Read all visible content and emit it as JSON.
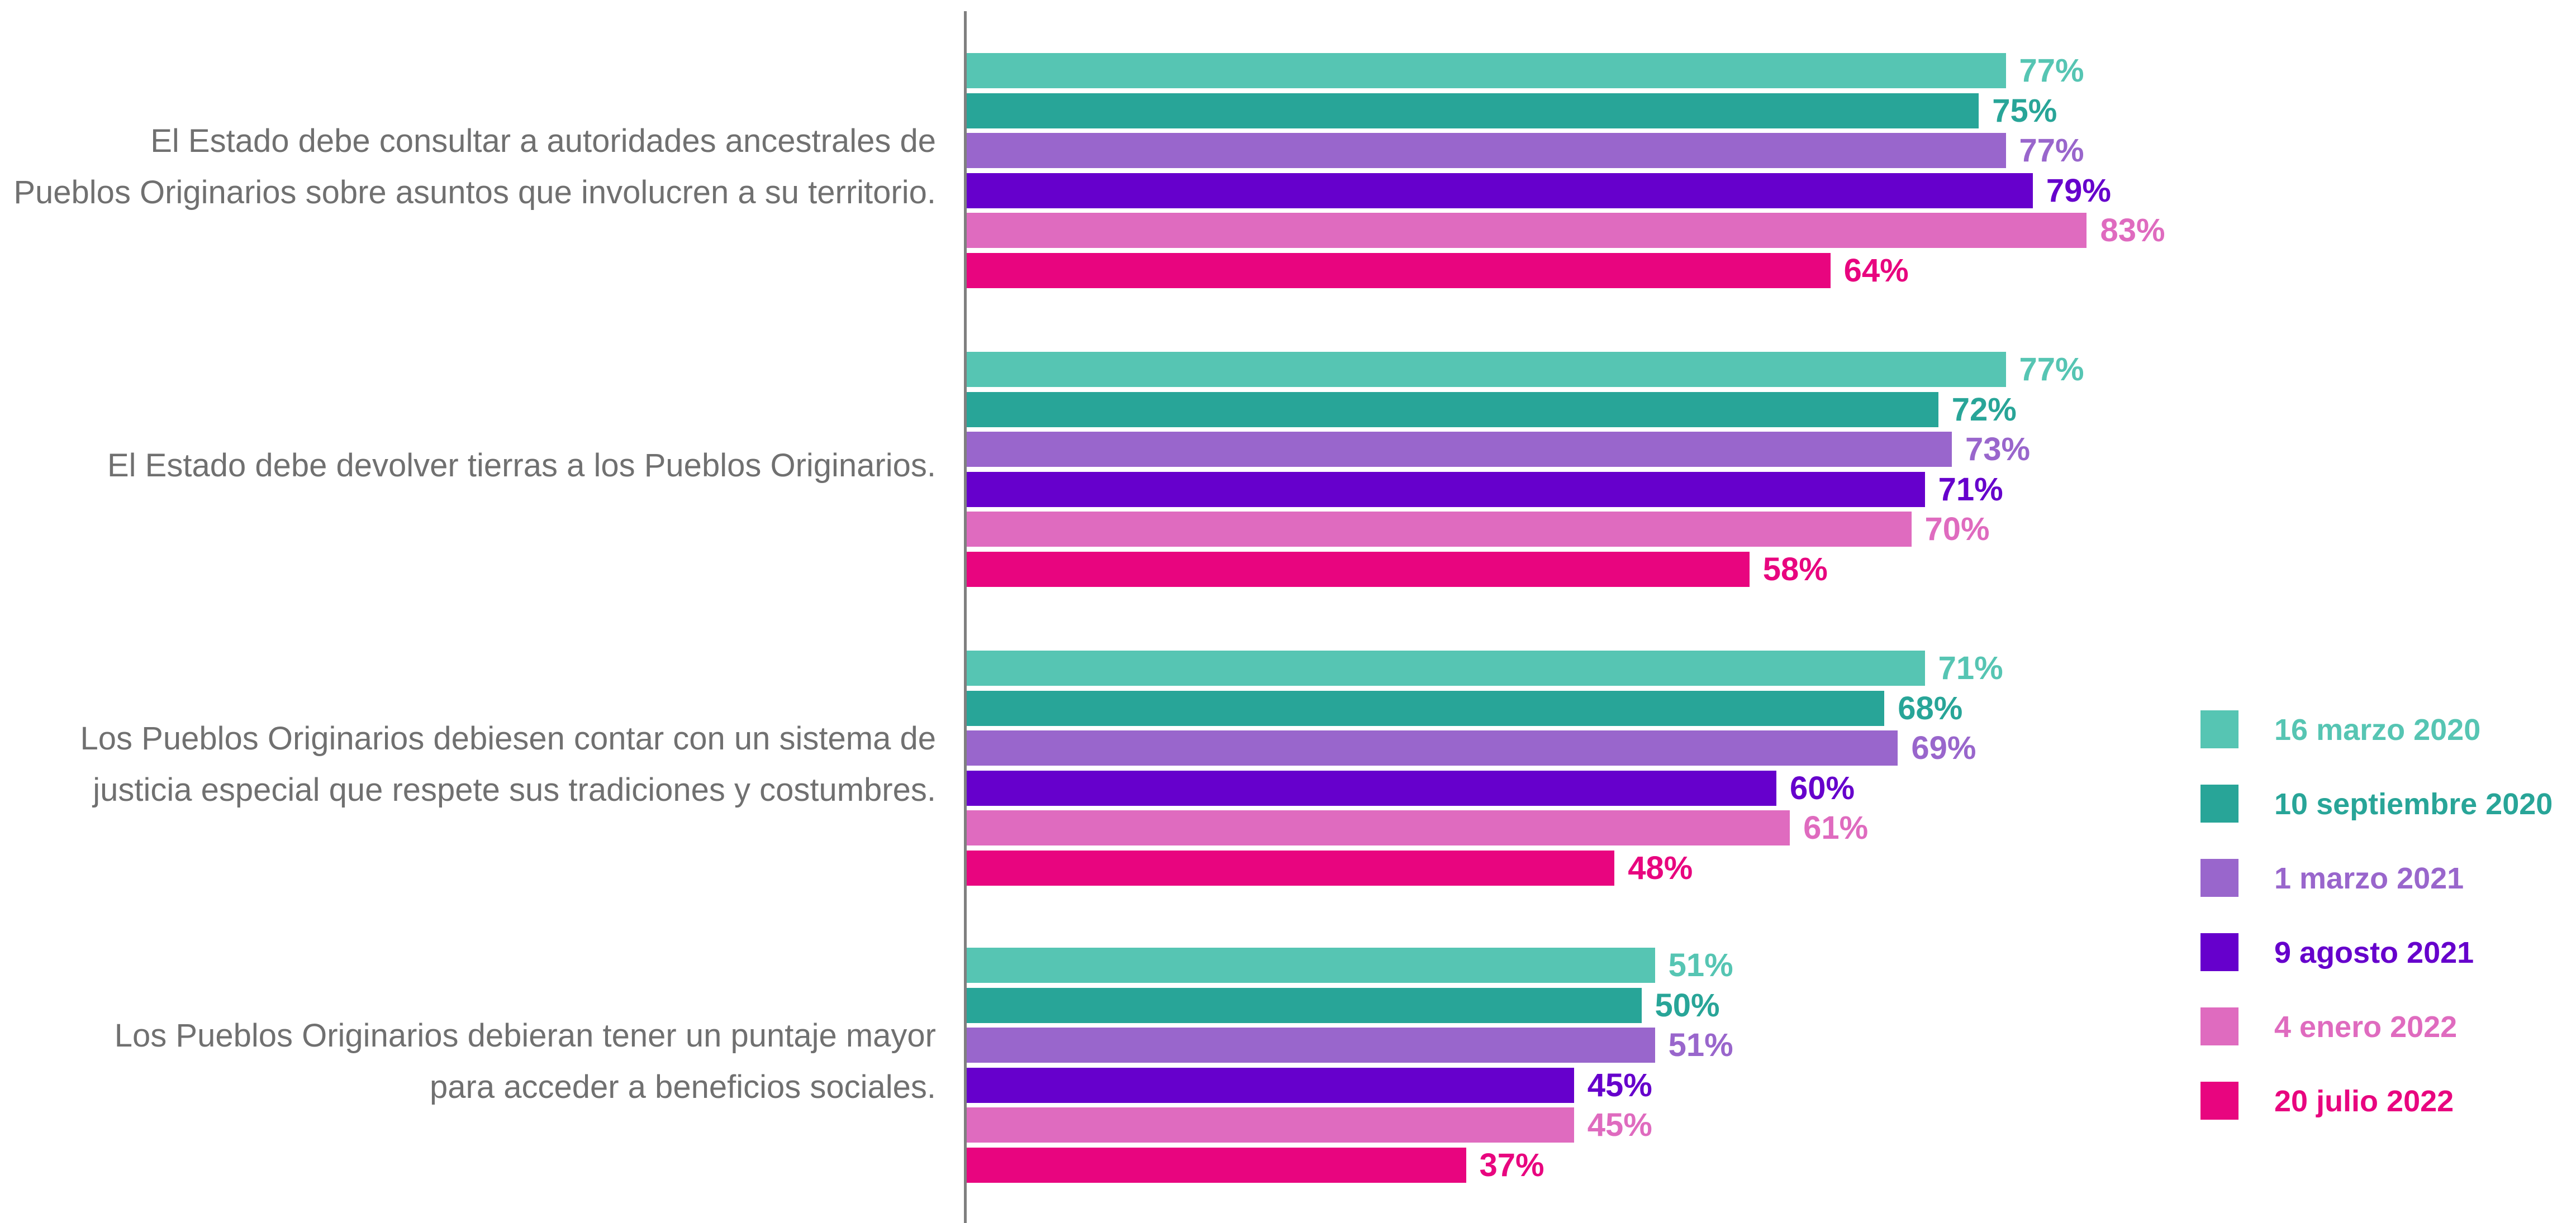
{
  "chart_data": {
    "type": "bar",
    "orientation": "horizontal",
    "categories": [
      "El Estado debe consultar a autoridades ancestrales de\nPueblos Originarios sobre asuntos que involucren a su territorio.",
      "El Estado debe devolver tierras a los Pueblos Originarios.",
      "Los Pueblos Originarios debiesen contar con un sistema de\njusticia especial que respete sus tradiciones y costumbres.",
      "Los Pueblos Originarios debieran tener un puntaje mayor\npara acceder a beneficios sociales."
    ],
    "series": [
      {
        "name": "16 marzo 2020",
        "color": "#56c5b3",
        "values": [
          77,
          77,
          71,
          51
        ]
      },
      {
        "name": "10 septiembre 2020",
        "color": "#28a598",
        "values": [
          75,
          72,
          68,
          50
        ]
      },
      {
        "name": "1 marzo 2021",
        "color": "#9966cc",
        "values": [
          77,
          73,
          69,
          51
        ]
      },
      {
        "name": "9 agosto 2021",
        "color": "#6600cc",
        "values": [
          79,
          71,
          60,
          45
        ]
      },
      {
        "name": "4 enero 2022",
        "color": "#df6bbf",
        "values": [
          83,
          70,
          61,
          45
        ]
      },
      {
        "name": "20 julio 2022",
        "color": "#e8057f",
        "values": [
          64,
          58,
          48,
          37
        ]
      }
    ],
    "value_suffix": "%",
    "xlim": [
      0,
      100
    ],
    "grid": false,
    "legend_position": "right"
  }
}
